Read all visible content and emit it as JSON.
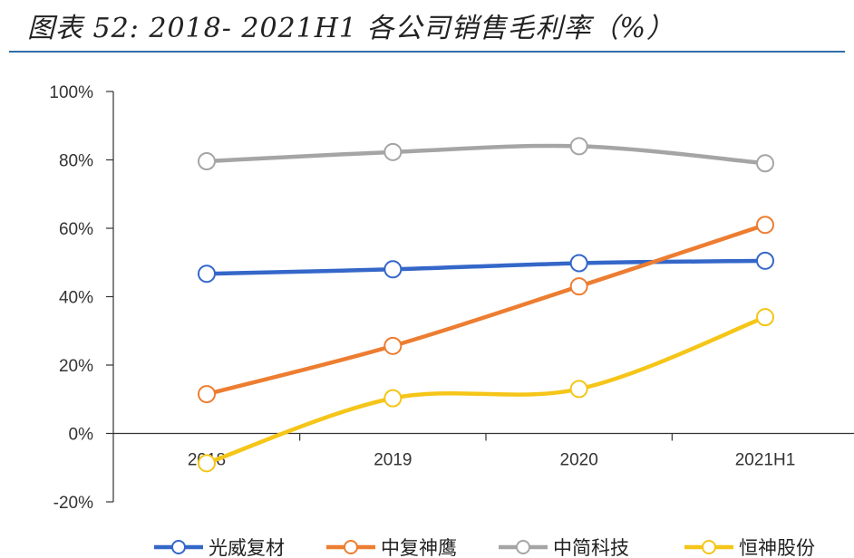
{
  "title": "图表 52: 2018- 2021H1 各公司销售毛利率（%）",
  "chart_data": {
    "type": "line",
    "categories": [
      "2018",
      "2019",
      "2020",
      "2021H1"
    ],
    "y_ticks": [
      "-20%",
      "0%",
      "20%",
      "40%",
      "60%",
      "80%",
      "100%"
    ],
    "ylim": [
      -20,
      100
    ],
    "y_unit": "%",
    "grid": false,
    "smooth": true,
    "legend_position": "bottom",
    "series": [
      {
        "name": "光威复材",
        "color": "#3567c9",
        "values": [
          46.7,
          48.0,
          49.8,
          50.5
        ]
      },
      {
        "name": "中复神鹰",
        "color": "#ed7d31",
        "values": [
          11.5,
          25.6,
          43.0,
          61.0
        ]
      },
      {
        "name": "中简科技",
        "color": "#a5a5a5",
        "values": [
          79.6,
          82.3,
          84.0,
          79.0
        ]
      },
      {
        "name": "恒神股份",
        "color": "#f5c518",
        "values": [
          -8.7,
          10.3,
          13.0,
          34.0
        ]
      }
    ]
  }
}
